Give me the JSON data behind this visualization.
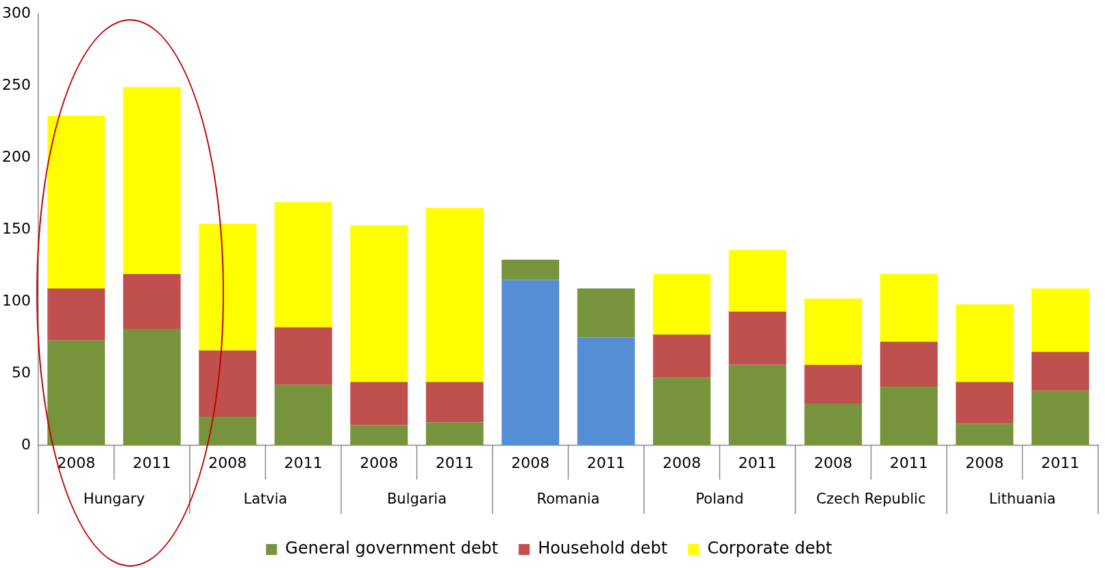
{
  "chart_data": {
    "type": "bar",
    "stacked": true,
    "categories": [
      "2008",
      "2011",
      "2008",
      "2011",
      "2008",
      "2011",
      "2008",
      "2011",
      "2008",
      "2011",
      "2008",
      "2011",
      "2008",
      "2011"
    ],
    "annotations": [
      "Hungary",
      "Latvia",
      "Bulgaria",
      "Romania",
      "Poland",
      "Czech Republic",
      "Lithuania"
    ],
    "series": [
      {
        "color": "#558ed5",
        "values": [
          0,
          0,
          0,
          0,
          0,
          0,
          115,
          75,
          0,
          0,
          0,
          0,
          0,
          0
        ]
      },
      {
        "name": "General government debt",
        "color": "#77933c",
        "values": [
          73,
          81,
          20,
          42,
          14,
          16,
          14,
          34,
          47,
          56,
          29,
          41,
          15,
          38
        ]
      },
      {
        "name": "Household debt",
        "color": "#c0504d",
        "values": [
          36,
          38,
          46,
          40,
          30,
          28,
          0,
          0,
          30,
          37,
          27,
          31,
          29,
          27
        ]
      },
      {
        "name": "Corporate debt",
        "color": "#ffff00",
        "values": [
          120,
          130,
          88,
          87,
          109,
          121,
          0,
          0,
          42,
          43,
          46,
          47,
          54,
          44
        ]
      }
    ],
    "ylim": [
      0,
      300
    ],
    "yticks": [
      0,
      50,
      100,
      150,
      200,
      250,
      300
    ],
    "grid": false,
    "legend": "bottom"
  }
}
